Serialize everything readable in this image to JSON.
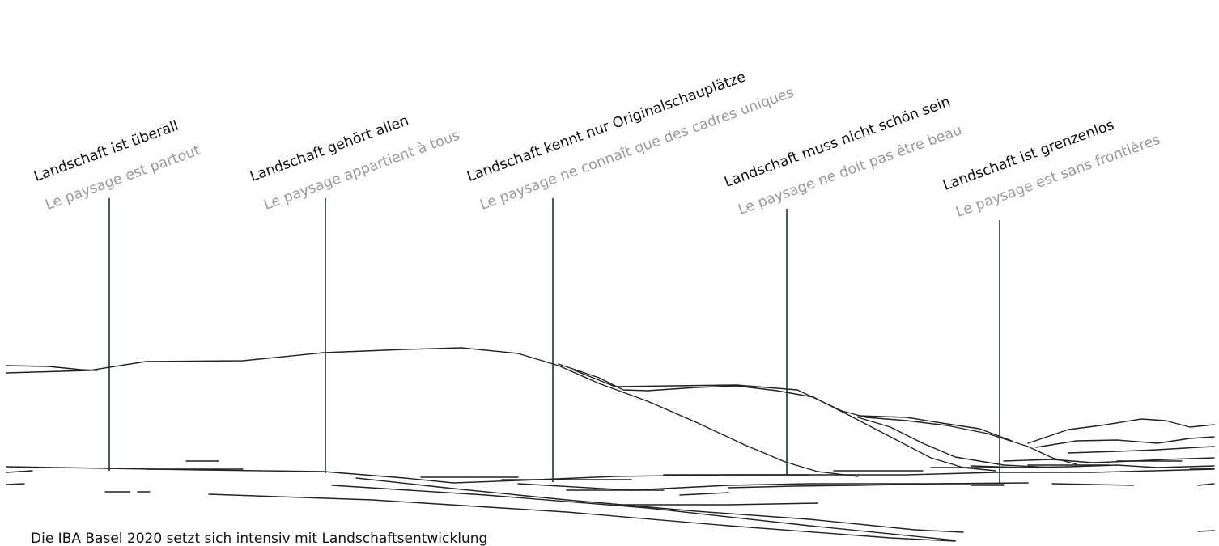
{
  "markers": [
    {
      "de": "Landschaft ist überall",
      "fr": "Le paysage est partout"
    },
    {
      "de": "Landschaft gehört allen",
      "fr": "Le paysage appartient à tous"
    },
    {
      "de": "Landschaft kennt nur Originalschauplätze",
      "fr": "Le paysage ne connaît que des cadres uniques"
    },
    {
      "de": "Landschaft muss nicht schön sein",
      "fr": "Le paysage ne doit pas être beau"
    },
    {
      "de": "Landschaft ist grenzenlos",
      "fr": "Le paysage est sans frontières"
    }
  ],
  "footer": {
    "text": "Die IBA Basel 2020 setzt sich intensiv mit Landschaftsentwicklung"
  },
  "colors": {
    "de_text": "#111111",
    "fr_text": "#9a9a9a",
    "marker_line": "#1f3322",
    "landscape_line": "#222222"
  }
}
